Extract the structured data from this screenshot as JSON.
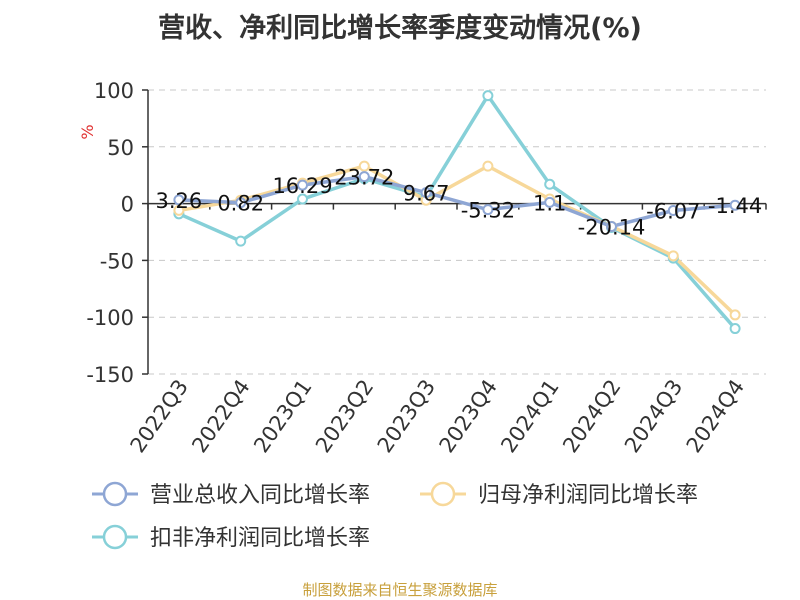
{
  "title": "营收、净利同比增长率季度变动情况(%)",
  "source": "制图数据来自恒生聚源数据库",
  "chart_data": {
    "type": "line",
    "ylabel": "%",
    "ylim": [
      -150,
      100
    ],
    "yticks": [
      100,
      50,
      0,
      -50,
      -100,
      -150
    ],
    "grid": true,
    "legend_position": "bottom",
    "categories": [
      "2022Q3",
      "2022Q4",
      "2023Q1",
      "2023Q2",
      "2023Q3",
      "2023Q4",
      "2024Q1",
      "2024Q2",
      "2024Q3",
      "2024Q4"
    ],
    "series": [
      {
        "name": "营业总收入同比增长率",
        "color": "#8ea6d4",
        "values": [
          3.26,
          0.82,
          16.29,
          23.72,
          9.67,
          -5.32,
          1.1,
          -20.14,
          -6.07,
          -1.44
        ],
        "labels": [
          "3.26",
          "0.82",
          "16.29",
          "23.72",
          "9.67",
          "-5.32",
          "1.1",
          "-20.14",
          "-6.07",
          "-1.44"
        ]
      },
      {
        "name": "归母净利润同比增长率",
        "color": "#f7d89a",
        "values": [
          -6,
          3,
          18,
          33,
          3,
          33,
          4,
          -20,
          -46,
          -98
        ]
      },
      {
        "name": "扣非净利润同比增长率",
        "color": "#86d0d8",
        "values": [
          -9,
          -33,
          4,
          22,
          6,
          95,
          17,
          -21,
          -48,
          -110
        ]
      }
    ]
  }
}
